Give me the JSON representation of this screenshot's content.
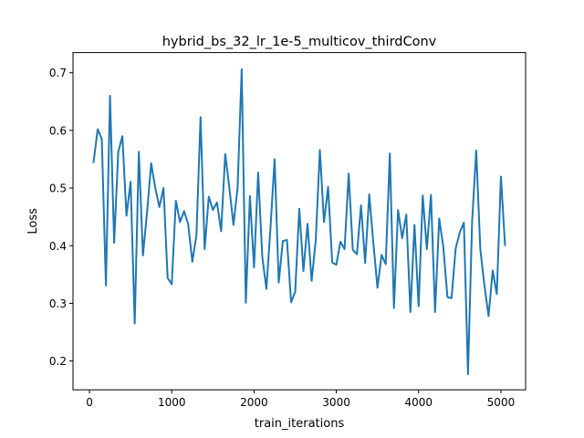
{
  "chart_data": {
    "type": "line",
    "title": "hybrid_bs_32_lr_1e-5_multicov_thirdConv",
    "xlabel": "train_iterations",
    "ylabel": "Loss",
    "xlim": [
      -200,
      5300
    ],
    "ylim": [
      0.15,
      0.735
    ],
    "xticks": [
      0,
      1000,
      2000,
      3000,
      4000,
      5000
    ],
    "yticks": [
      0.2,
      0.3,
      0.4,
      0.5,
      0.6,
      0.7
    ],
    "xtick_labels": [
      "0",
      "1000",
      "2000",
      "3000",
      "4000",
      "5000"
    ],
    "ytick_labels": [
      "0.2",
      "0.3",
      "0.4",
      "0.5",
      "0.6",
      "0.7"
    ],
    "grid": false,
    "legend": "none",
    "line_color": "#1f77b4",
    "series": [
      {
        "x": [
          50,
          100,
          150,
          200,
          250,
          300,
          350,
          400,
          450,
          500,
          550,
          600,
          650,
          700,
          750,
          800,
          850,
          900,
          950,
          1000,
          1050,
          1100,
          1150,
          1200,
          1250,
          1300,
          1350,
          1400,
          1450,
          1500,
          1550,
          1600,
          1650,
          1700,
          1750,
          1800,
          1850,
          1900,
          1950,
          2000,
          2050,
          2100,
          2150,
          2200,
          2250,
          2300,
          2350,
          2400,
          2450,
          2500,
          2550,
          2600,
          2650,
          2700,
          2750,
          2800,
          2850,
          2900,
          2950,
          3000,
          3050,
          3100,
          3150,
          3200,
          3250,
          3300,
          3350,
          3400,
          3450,
          3500,
          3550,
          3600,
          3650,
          3700,
          3750,
          3800,
          3850,
          3900,
          3950,
          4000,
          4050,
          4100,
          4150,
          4200,
          4250,
          4300,
          4350,
          4400,
          4450,
          4500,
          4550,
          4600,
          4650,
          4700,
          4750,
          4800,
          4850,
          4900,
          4950,
          5000,
          5050
        ],
        "y": [
          0.545,
          0.602,
          0.585,
          0.331,
          0.66,
          0.405,
          0.563,
          0.59,
          0.452,
          0.511,
          0.265,
          0.563,
          0.383,
          0.458,
          0.543,
          0.5,
          0.467,
          0.5,
          0.344,
          0.333,
          0.478,
          0.441,
          0.46,
          0.437,
          0.372,
          0.418,
          0.623,
          0.394,
          0.485,
          0.462,
          0.475,
          0.425,
          0.559,
          0.5,
          0.436,
          0.5,
          0.706,
          0.301,
          0.486,
          0.362,
          0.527,
          0.381,
          0.325,
          0.431,
          0.55,
          0.336,
          0.408,
          0.41,
          0.302,
          0.32,
          0.464,
          0.356,
          0.438,
          0.339,
          0.41,
          0.566,
          0.441,
          0.502,
          0.371,
          0.367,
          0.407,
          0.394,
          0.525,
          0.393,
          0.385,
          0.47,
          0.37,
          0.489,
          0.405,
          0.327,
          0.384,
          0.368,
          0.56,
          0.292,
          0.462,
          0.413,
          0.454,
          0.285,
          0.436,
          0.295,
          0.487,
          0.394,
          0.488,
          0.285,
          0.447,
          0.398,
          0.311,
          0.309,
          0.395,
          0.423,
          0.44,
          0.177,
          0.442,
          0.565,
          0.393,
          0.331,
          0.278,
          0.357,
          0.316,
          0.52,
          0.401
        ]
      }
    ]
  }
}
